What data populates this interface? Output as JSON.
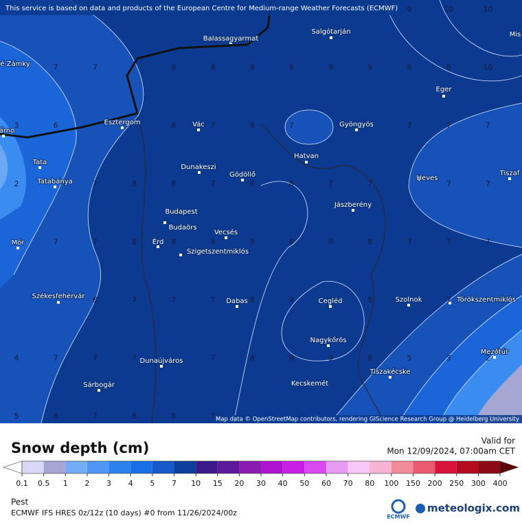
{
  "header": {
    "attribution": "This service is based on data and products of the European Centre for Medium-range Weather Forecasts (ECMWF)"
  },
  "map": {
    "credit": "Map data © OpenStreetMap contributors, rendering GIScience Research Group @ Heidelberg University",
    "places": [
      "Balassagyarmat",
      "Salgótarján",
      "Mis",
      "é Zámky",
      "Eger",
      "Esztergom",
      "árno",
      "Vác",
      "Gyöngyös",
      "Tata",
      "Dunakeszi",
      "Gödöllő",
      "Hatvan",
      "Tiszaf",
      "Tatabánya",
      "Heves",
      "Jászberény",
      "Budapest",
      "Budaörs",
      "Mór",
      "Érd",
      "Vecsés",
      "Szigetszentmiklós",
      "Székesfehérvár",
      "Dabas",
      "Cegléd",
      "Szolnok",
      "Törökszentmiklós",
      "Nagykőrös",
      "Mezőtúr",
      "Dunaújváros",
      "Tiszakécske",
      "Kecskemét",
      "Sárbogár"
    ],
    "grid": [
      [
        null,
        null,
        null,
        null,
        null,
        null,
        null,
        null,
        null,
        null,
        9,
        10,
        10
      ],
      [
        null,
        7,
        7,
        null,
        8,
        8,
        8,
        8,
        9,
        9,
        8,
        8,
        10
      ],
      [
        3,
        6,
        null,
        null,
        8,
        7,
        8,
        7,
        null,
        null,
        7,
        7,
        7
      ],
      [
        2,
        null,
        7,
        8,
        8,
        7,
        8,
        8,
        7,
        7,
        null,
        7,
        7
      ],
      [
        null,
        7,
        7,
        8,
        8,
        8,
        8,
        8,
        8,
        8,
        7,
        7,
        7
      ],
      [
        null,
        null,
        6,
        7,
        7,
        7,
        8,
        9,
        null,
        8,
        null,
        7,
        null
      ],
      [
        4,
        7,
        7,
        7,
        null,
        7,
        8,
        8,
        9,
        8,
        5,
        3,
        2
      ],
      [
        5,
        8,
        7,
        8,
        8,
        7,
        null,
        null,
        null,
        null,
        null,
        null,
        null
      ]
    ]
  },
  "legend": {
    "title": "Snow depth (cm)",
    "ticks": [
      "0.1",
      "0.5",
      "1",
      "2",
      "3",
      "4",
      "5",
      "7",
      "10",
      "15",
      "20",
      "30",
      "40",
      "50",
      "60",
      "70",
      "80",
      "100",
      "150",
      "200",
      "250",
      "300",
      "400"
    ],
    "colors": [
      "#d9d9f7",
      "#a6a6d3",
      "#74acf5",
      "#4f97f2",
      "#2b82ef",
      "#1a6ee6",
      "#1659c8",
      "#0d3f9c",
      "#3a1a8a",
      "#5b1a9a",
      "#8a1ab0",
      "#b014d0",
      "#c81ee6",
      "#d84af0",
      "#e89af5",
      "#f5c8f5",
      "#f5b4d2",
      "#f08c9a",
      "#eb5a6e",
      "#d8143c",
      "#b40a1e",
      "#8c0a14"
    ],
    "over_color": "#5a0a0a",
    "under_color": "#ffffff"
  },
  "info": {
    "valid_label": "Valid for",
    "valid_time": "Mon 12/09/2024, 07:00am CET",
    "region": "Pest",
    "model": "ECMWF IFS HRES 0z/12z (10 days) #0 from  11/26/2024/00z",
    "ecmwf_logo": "ECMWF",
    "brand": "meteologix.com"
  }
}
